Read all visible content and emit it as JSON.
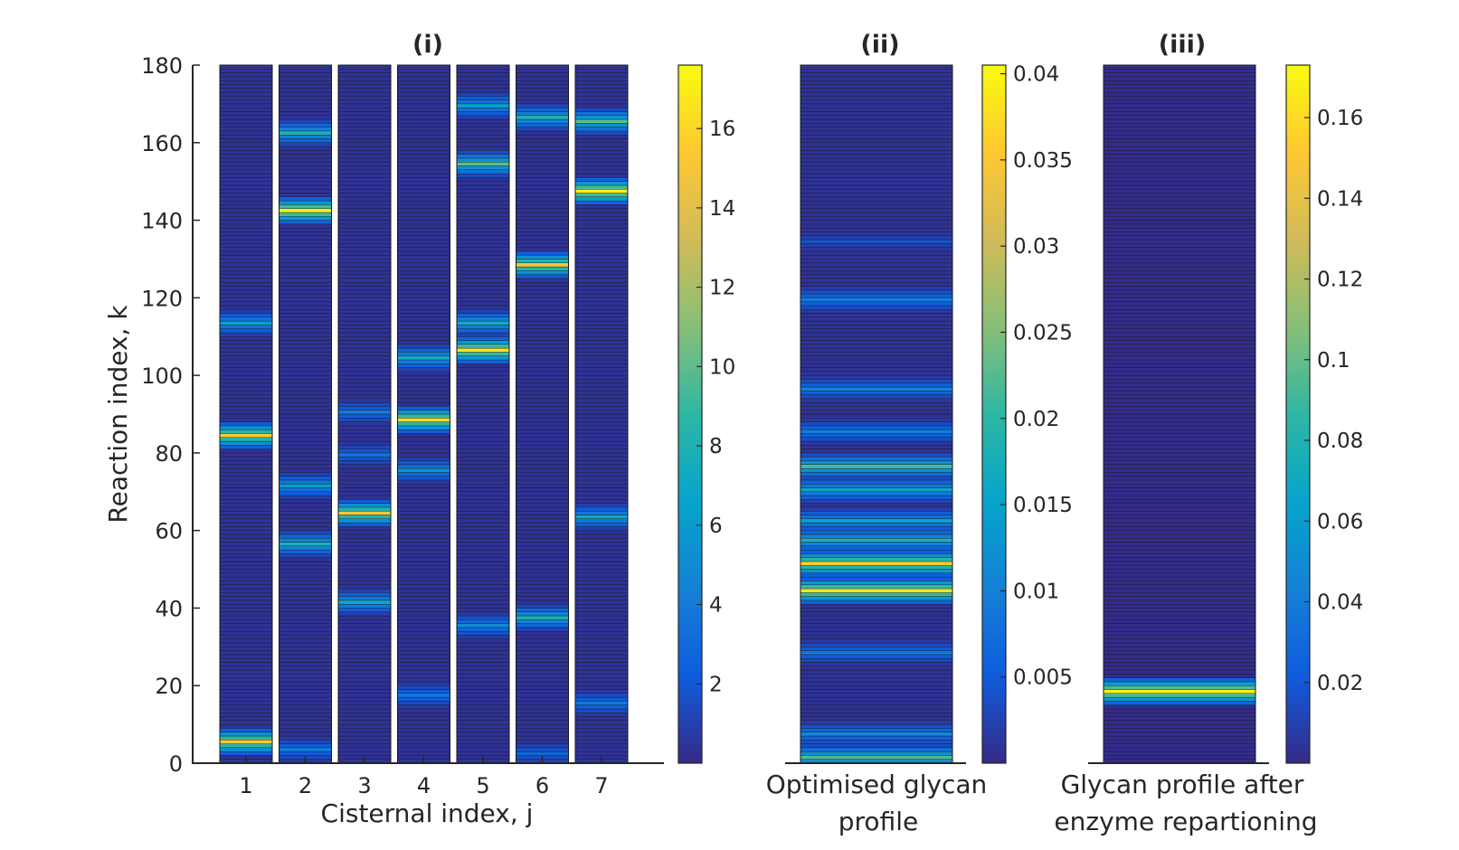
{
  "chart_data": [
    {
      "type": "heatmap",
      "panel": "(i)",
      "title": "(i)",
      "xlabel": "Cisternal index, j",
      "ylabel": "Reaction index, k",
      "categories": [
        "1",
        "2",
        "3",
        "4",
        "5",
        "6",
        "7"
      ],
      "ylim": [
        0,
        180
      ],
      "yticks": [
        0,
        20,
        40,
        60,
        80,
        100,
        120,
        140,
        160,
        180
      ],
      "colorbar": {
        "min": 0,
        "max": 17.6,
        "ticks": [
          2,
          4,
          6,
          8,
          10,
          12,
          14,
          16
        ],
        "tick_labels": [
          "2",
          "4",
          "6",
          "8",
          "10",
          "12",
          "14",
          "16"
        ]
      },
      "hotspots": [
        {
          "column": "1",
          "peaks": [
            {
              "k": 6,
              "value": 15.5
            },
            {
              "k": 85,
              "value": 15.5
            },
            {
              "k": 114,
              "value": 6.5
            }
          ]
        },
        {
          "column": "2",
          "peaks": [
            {
              "k": 4,
              "value": 4
            },
            {
              "k": 57,
              "value": 8
            },
            {
              "k": 72,
              "value": 6.5
            },
            {
              "k": 143,
              "value": 17
            },
            {
              "k": 163,
              "value": 8
            }
          ]
        },
        {
          "column": "3",
          "peaks": [
            {
              "k": 42,
              "value": 7
            },
            {
              "k": 65,
              "value": 15
            },
            {
              "k": 80,
              "value": 3.5
            },
            {
              "k": 91,
              "value": 4
            }
          ]
        },
        {
          "column": "4",
          "peaks": [
            {
              "k": 18,
              "value": 4
            },
            {
              "k": 76,
              "value": 5.5
            },
            {
              "k": 89,
              "value": 16
            },
            {
              "k": 105,
              "value": 7.5
            }
          ]
        },
        {
          "column": "5",
          "peaks": [
            {
              "k": 36,
              "value": 5
            },
            {
              "k": 107,
              "value": 16.5
            },
            {
              "k": 114,
              "value": 7.5
            },
            {
              "k": 155,
              "value": 10
            },
            {
              "k": 170,
              "value": 6.5
            }
          ]
        },
        {
          "column": "6",
          "peaks": [
            {
              "k": 3,
              "value": 3
            },
            {
              "k": 38,
              "value": 8
            },
            {
              "k": 129,
              "value": 15
            },
            {
              "k": 167,
              "value": 8
            }
          ]
        },
        {
          "column": "7",
          "peaks": [
            {
              "k": 16,
              "value": 4
            },
            {
              "k": 64,
              "value": 7
            },
            {
              "k": 148,
              "value": 17
            },
            {
              "k": 166,
              "value": 10
            }
          ]
        }
      ]
    },
    {
      "type": "heatmap",
      "panel": "(ii)",
      "title": "(ii)",
      "xlabel_lines": [
        "Optimised glycan",
        "profile"
      ],
      "ylim": [
        0,
        180
      ],
      "colorbar": {
        "min": 0,
        "max": 0.0405,
        "ticks": [
          0.005,
          0.01,
          0.015,
          0.02,
          0.025,
          0.03,
          0.035,
          0.04
        ],
        "tick_labels": [
          "0.005",
          "0.01",
          "0.015",
          "0.02",
          "0.025",
          "0.03",
          "0.035",
          "0.04"
        ]
      },
      "peaks": [
        {
          "k": 2,
          "value": 0.022
        },
        {
          "k": 8,
          "value": 0.011
        },
        {
          "k": 29,
          "value": 0.009
        },
        {
          "k": 45,
          "value": 0.038
        },
        {
          "k": 52,
          "value": 0.036
        },
        {
          "k": 58,
          "value": 0.018
        },
        {
          "k": 63,
          "value": 0.015
        },
        {
          "k": 71,
          "value": 0.016
        },
        {
          "k": 77,
          "value": 0.022
        },
        {
          "k": 86,
          "value": 0.01
        },
        {
          "k": 97,
          "value": 0.01
        },
        {
          "k": 120,
          "value": 0.01
        },
        {
          "k": 135,
          "value": 0.004
        }
      ]
    },
    {
      "type": "heatmap",
      "panel": "(iii)",
      "title": "(iii)",
      "xlabel_lines": [
        "Glycan profile after",
        "enzyme repartioning"
      ],
      "ylim": [
        0,
        180
      ],
      "colorbar": {
        "min": 0,
        "max": 0.173,
        "ticks": [
          0.02,
          0.04,
          0.06,
          0.08,
          0.1,
          0.12,
          0.14,
          0.16
        ],
        "tick_labels": [
          "0.02",
          "0.04",
          "0.06",
          "0.08",
          "0.1",
          "0.12",
          "0.14",
          "0.16"
        ]
      },
      "peaks": [
        {
          "k": 19,
          "value": 0.17
        }
      ]
    }
  ]
}
